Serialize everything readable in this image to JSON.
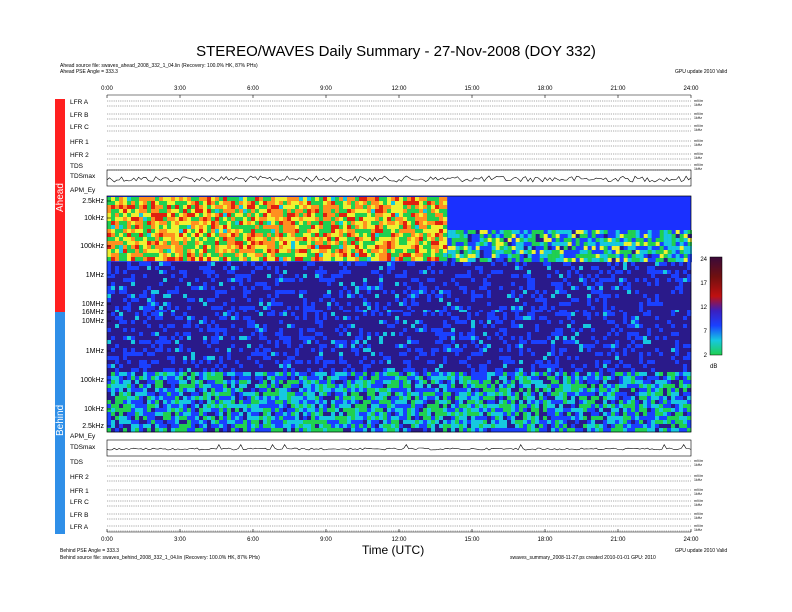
{
  "title": "STEREO/WAVES Daily Summary - 27-Nov-2008 (DOY 332)",
  "header": {
    "ahead_source": "Ahead source file: swaves_ahead_2008_332_1_04.lin (Recovery: 100.0% HK, 87% PHs)",
    "ahead_angle": "Ahead PSE Angle = 333.3",
    "update_note": "GPU update 2010 Valid",
    "behind_angle": "Behind PSE Angle = 333.3",
    "behind_source": "Behind source file: swaves_behind_2008_332_1_04.lin (Recovery: 100.0% HK, 87% PHs)",
    "footer_right": "swaves_summary_2008-11-27.ps  created 2010-01-01  GPU: 2010"
  },
  "side_labels": {
    "ahead": "Ahead",
    "behind": "Behind"
  },
  "colors": {
    "ahead": "#ff2020",
    "behind": "#2f8fe8",
    "noise": "#1020e0"
  },
  "ahead_panels": [
    "LFR A",
    "LFR B",
    "LFR C",
    "HFR 1",
    "HFR 2",
    "TDS",
    "TDSmax",
    "APM_Ey"
  ],
  "behind_panels": [
    "APM_Ey",
    "TDSmax",
    "TDS",
    "HFR 2",
    "HFR 1",
    "LFR C",
    "LFR B",
    "LFR A"
  ],
  "right_small": {
    "top_a": "0.01",
    "top_b": "0.1",
    "mV": "mV/m",
    "units_a": "1kHz",
    "units_b": "%data"
  },
  "colorbar": {
    "ticks": [
      "24",
      "17",
      "12",
      "7",
      "2"
    ],
    "unit": "dB"
  },
  "chart_data": {
    "type": "heatmap",
    "title": "STEREO/WAVES Daily Summary - 27-Nov-2008 (DOY 332)",
    "xlabel": "Time (UTC)",
    "x_ticks": [
      "0:00",
      "3:00",
      "6:00",
      "9:00",
      "12:00",
      "15:00",
      "18:00",
      "21:00",
      "24:00"
    ],
    "xlim": [
      "0:00",
      "24:00"
    ],
    "ahead_freq_ticks": [
      "2.5kHz",
      "10kHz",
      "100kHz",
      "1MHz",
      "10MHz",
      "16MHz"
    ],
    "behind_freq_ticks": [
      "10MHz",
      "1MHz",
      "100kHz",
      "10kHz",
      "2.5kHz"
    ],
    "colorbar_range_dB": [
      2,
      24
    ],
    "colorbar_ticks": [
      24,
      17,
      12,
      7,
      2
    ],
    "colormap": [
      "#2a1a8a",
      "#1a40ff",
      "#16c8e0",
      "#20d050",
      "#f0f030",
      "#ff9020",
      "#e02010",
      "#4a0a0a"
    ],
    "regions": [
      {
        "spacecraft": "Ahead",
        "freq_band": "2.5kHz-100kHz",
        "t_start_h": 0,
        "t_end_h": 14,
        "level_dB": 15
      },
      {
        "spacecraft": "Ahead",
        "freq_band": "100kHz-400kHz",
        "t_start_h": 14,
        "t_end_h": 24,
        "level_dB": 9
      },
      {
        "spacecraft": "Ahead",
        "freq_band": "1MHz-16MHz",
        "t_start_h": 0,
        "t_end_h": 24,
        "level_dB": 3
      },
      {
        "spacecraft": "Behind",
        "freq_band": "1MHz-10MHz",
        "t_start_h": 0,
        "t_end_h": 24,
        "level_dB": 3
      },
      {
        "spacecraft": "Behind",
        "freq_band": "2.5kHz-100kHz",
        "t_start_h": 0,
        "t_end_h": 24,
        "level_dB": 8
      }
    ]
  }
}
